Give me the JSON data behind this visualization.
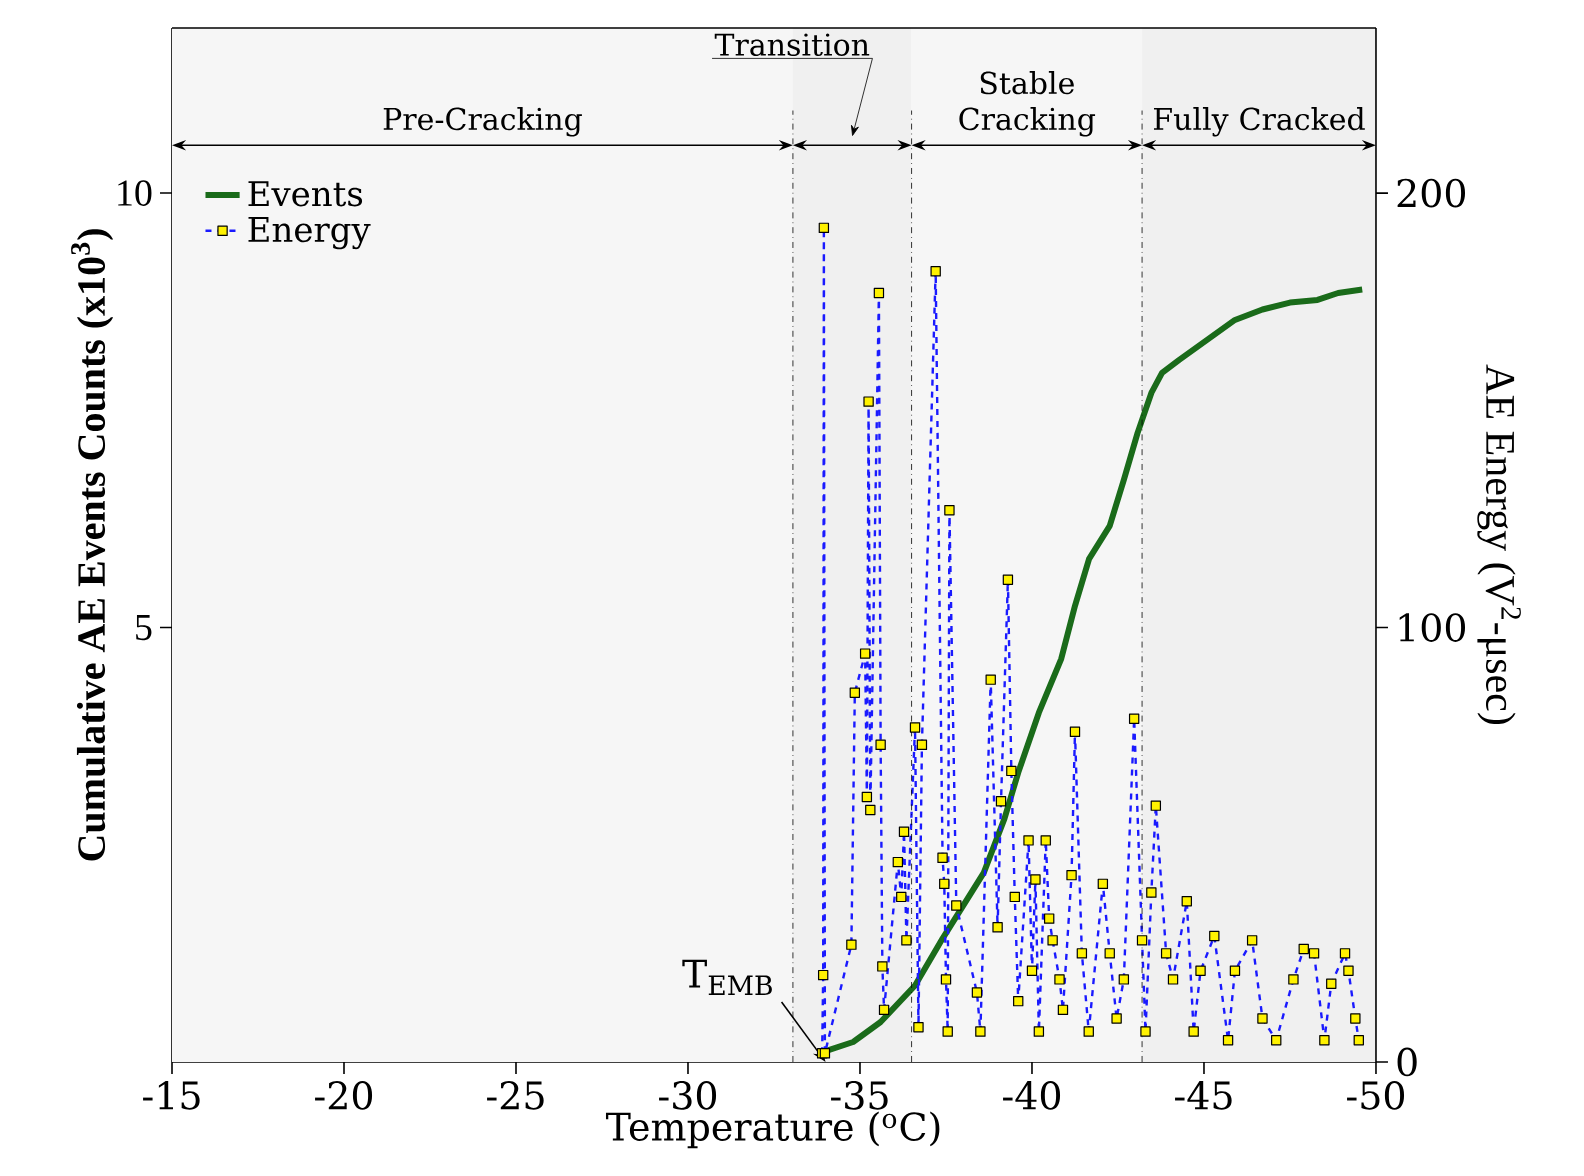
{
  "chart_data": {
    "type": "line",
    "xlabel": "Temperature ($^{o}$C)",
    "ylabel": "Cumulative AE Events Counts (x10$^{3}$)",
    "y2label": "AE Energy (V$^{2}$-μsec)",
    "xlim": [
      -15,
      -50
    ],
    "xticks": [
      -15,
      -20,
      -25,
      -30,
      -35,
      -40,
      -45,
      -50
    ],
    "ylim": [
      0,
      11.9
    ],
    "yticks": [
      5,
      10
    ],
    "y2lim": [
      0,
      238
    ],
    "y2ticks": [
      0,
      100,
      200
    ],
    "legend": "top left",
    "bands": [
      {
        "axis": "x",
        "from": -15,
        "to": -33.05,
        "label": "Pre-Cracking",
        "color": "#f6f6f6"
      },
      {
        "axis": "x",
        "from": -33.05,
        "to": -36.5,
        "label": "Transition",
        "color": "#f0f0f0"
      },
      {
        "axis": "x",
        "from": -36.5,
        "to": -43.2,
        "label": "Stable Cracking",
        "color": "#f6f6f6"
      },
      {
        "axis": "x",
        "from": -43.2,
        "to": -50,
        "label": "Fully Cracked",
        "color": "#f0f0f0"
      }
    ],
    "ref_lines": [
      {
        "axis": "x",
        "value": -33.05,
        "line_style": "dashdot"
      },
      {
        "axis": "x",
        "value": -36.5,
        "line_style": "dashdot"
      },
      {
        "axis": "x",
        "value": -43.2,
        "line_style": "dashdot"
      }
    ],
    "annotations": [
      {
        "text": "T$_{EMB}$",
        "x": -34,
        "y": 0
      }
    ],
    "series": [
      {
        "name": "Events",
        "color": "#1a6b1a",
        "marker": "none",
        "line_style": "solid",
        "x": [
          -33.8,
          -34.8,
          -35.6,
          -36.6,
          -37.4,
          -38.0,
          -38.6,
          -39.2,
          -39.6,
          -40.2,
          -40.85,
          -41.25,
          -41.66,
          -42.26,
          -42.67,
          -43.07,
          -43.47,
          -43.78,
          -44.28,
          -45.09,
          -45.9,
          -46.7,
          -47.5,
          -48.3,
          -48.9,
          -49.6
        ],
        "values": [
          0.1,
          0.23,
          0.46,
          0.88,
          1.42,
          1.8,
          2.18,
          2.8,
          3.33,
          4.02,
          4.64,
          5.25,
          5.79,
          6.17,
          6.7,
          7.24,
          7.7,
          7.93,
          8.08,
          8.31,
          8.54,
          8.66,
          8.74,
          8.77,
          8.85,
          8.89
        ]
      },
      {
        "name": "Energy",
        "color": "#1a1aff",
        "marker": "square",
        "line_style": "dashed",
        "axis": "y2",
        "x": [
          -33.9,
          -33.93,
          -33.95,
          -33.98,
          -34.75,
          -34.85,
          -35.15,
          -35.2,
          -35.25,
          -35.3,
          -35.55,
          -35.6,
          -35.65,
          -35.7,
          -36.1,
          -36.2,
          -36.28,
          -36.35,
          -36.6,
          -36.7,
          -36.8,
          -37.2,
          -37.4,
          -37.45,
          -37.5,
          -37.55,
          -37.6,
          -37.8,
          -38.4,
          -38.5,
          -38.8,
          -39.0,
          -39.1,
          -39.3,
          -39.4,
          -39.5,
          -39.6,
          -39.9,
          -40.0,
          -40.1,
          -40.2,
          -40.4,
          -40.5,
          -40.6,
          -40.8,
          -40.9,
          -41.15,
          -41.25,
          -41.45,
          -41.65,
          -42.06,
          -42.26,
          -42.46,
          -42.67,
          -42.97,
          -43.2,
          -43.3,
          -43.47,
          -43.6,
          -43.9,
          -44.1,
          -44.5,
          -44.7,
          -44.9,
          -45.3,
          -45.7,
          -45.9,
          -46.4,
          -46.7,
          -47.1,
          -47.6,
          -47.9,
          -48.2,
          -48.5,
          -48.7,
          -49.1,
          -49.2,
          -49.4,
          -49.5
        ],
        "values": [
          2,
          20,
          192,
          2,
          27,
          85,
          94,
          61,
          152,
          58,
          177,
          73,
          22,
          12,
          46,
          38,
          53,
          28,
          77,
          8,
          73,
          182,
          47,
          41,
          19,
          7,
          127,
          36,
          16,
          7,
          88,
          31,
          60,
          111,
          67,
          38,
          14,
          51,
          21,
          42,
          7,
          51,
          33,
          28,
          19,
          12,
          43,
          76,
          25,
          7,
          41,
          25,
          10,
          19,
          79,
          28,
          7,
          39,
          59,
          25,
          19,
          37,
          7,
          21,
          29,
          5,
          21,
          28,
          10,
          5,
          19,
          26,
          25,
          5,
          18,
          25,
          21,
          10,
          5
        ]
      }
    ]
  }
}
